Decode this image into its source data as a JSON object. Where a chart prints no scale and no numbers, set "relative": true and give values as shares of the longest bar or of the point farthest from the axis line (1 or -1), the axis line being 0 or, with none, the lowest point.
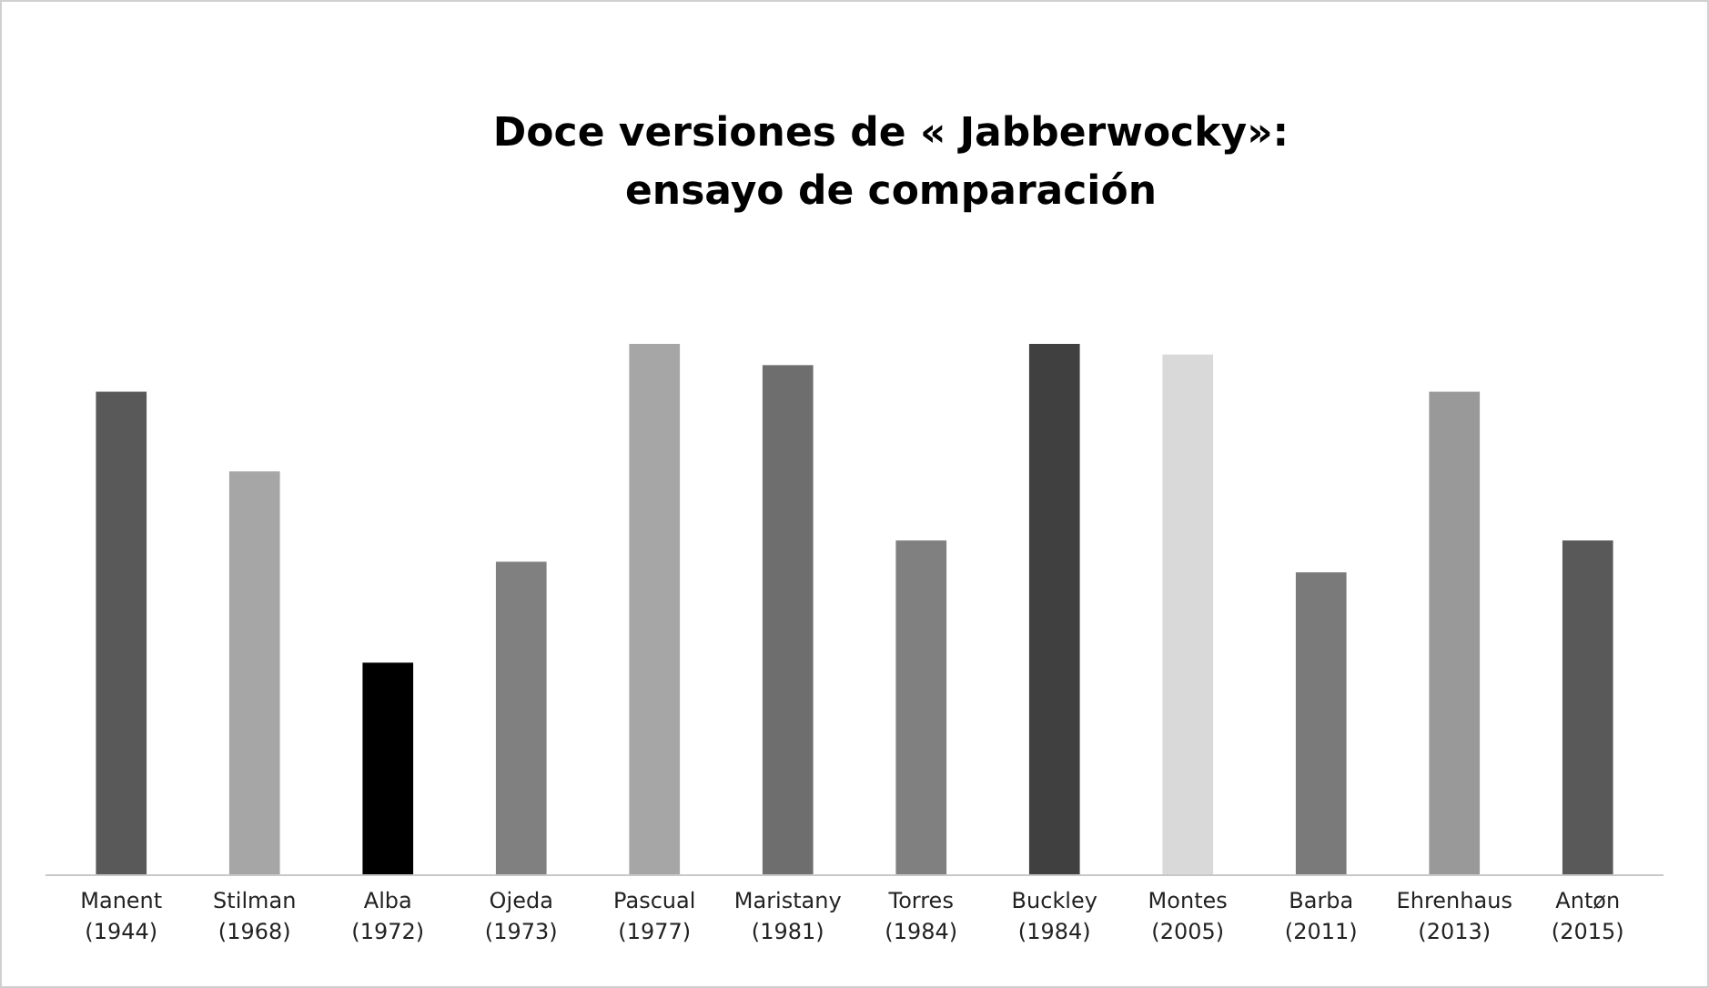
{
  "chart_data": {
    "type": "bar",
    "title": "Doce versiones de « Jabberwocky»:\nensayo de comparación",
    "relative": true,
    "categories": [
      "Manent\n(1944)",
      "Stilman\n(1968)",
      "Alba\n(1972)",
      "Ojeda\n(1973)",
      "Pascual\n(1977)",
      "Maristany\n(1981)",
      "Torres\n(1984)",
      "Buckley\n(1984)",
      "Montes\n(2005)",
      "Barba\n(2011)",
      "Ehrenhaus\n(2013)",
      "Antøn\n(2015)"
    ],
    "values": [
      0.91,
      0.76,
      0.4,
      0.59,
      1,
      0.96,
      0.63,
      1,
      0.98,
      0.57,
      0.91,
      0.63
    ],
    "colors": [
      "#595959",
      "#a6a6a6",
      "#000000",
      "#808080",
      "#a6a6a6",
      "#6e6e6e",
      "#808080",
      "#404040",
      "#d9d9d9",
      "#7a7a7a",
      "#999999",
      "#595959"
    ]
  }
}
